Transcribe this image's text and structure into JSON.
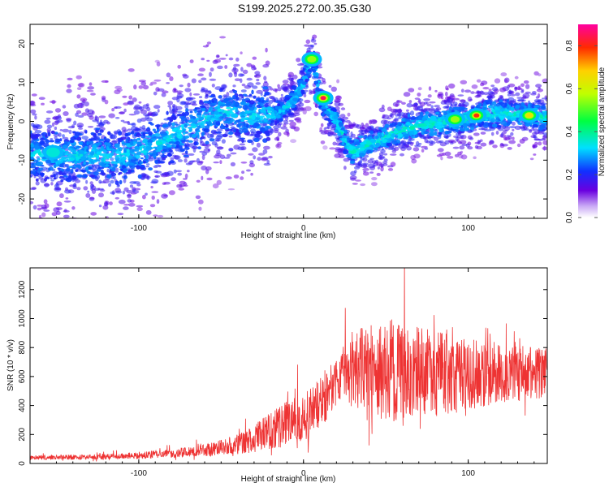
{
  "title": "S199.2025.272.00.35.G30",
  "chart_data": [
    {
      "type": "heatmap",
      "xlabel": "Height of straight line (km)",
      "ylabel": "Frequency (Hz)",
      "xlim": [
        -166,
        148
      ],
      "ylim": [
        -25,
        25
      ],
      "xticks": [
        -100,
        0,
        100
      ],
      "yticks": [
        -20,
        -10,
        0,
        10,
        20
      ],
      "colorbar": {
        "label": "Normalized spectral amplitude",
        "range": [
          0.0,
          0.9
        ],
        "ticks": [
          0.0,
          0.2,
          0.4,
          0.6,
          0.8
        ]
      },
      "ridge": {
        "x": [
          -166,
          -150,
          -130,
          -110,
          -90,
          -70,
          -50,
          -30,
          -15,
          -5,
          0,
          3,
          6,
          10,
          15,
          20,
          25,
          30,
          40,
          55,
          70,
          90,
          110,
          130,
          148
        ],
        "y": [
          -8,
          -9,
          -9,
          -9,
          -6,
          -2,
          3,
          1,
          2,
          6,
          10,
          14,
          16,
          6,
          3,
          0,
          -5,
          -8,
          -6,
          -3,
          -1,
          0,
          2,
          2,
          1
        ]
      },
      "hotspots": [
        {
          "x": 5,
          "y": 16,
          "amplitude": 0.55
        },
        {
          "x": 12,
          "y": 6,
          "amplitude": 0.85
        },
        {
          "x": 105,
          "y": 1.5,
          "amplitude": 0.8
        },
        {
          "x": 137,
          "y": 1.5,
          "amplitude": 0.65
        },
        {
          "x": 92,
          "y": 0.5,
          "amplitude": 0.55
        },
        {
          "x": -152,
          "y": -8,
          "amplitude": 0.35
        }
      ]
    },
    {
      "type": "line",
      "xlabel": "Height of straight line (km)",
      "ylabel": "SNR (10 * v/v)",
      "xlim": [
        -166,
        148
      ],
      "ylim": [
        0,
        1350
      ],
      "xticks": [
        -100,
        0,
        100
      ],
      "yticks": [
        0,
        200,
        400,
        600,
        800,
        1000,
        1200
      ],
      "color": "#ee3333",
      "envelope": {
        "x": [
          -166,
          -120,
          -100,
          -80,
          -60,
          -40,
          -20,
          0,
          10,
          20,
          25,
          35,
          50,
          60,
          80,
          100,
          120,
          148
        ],
        "mean": [
          40,
          45,
          55,
          70,
          90,
          130,
          220,
          330,
          420,
          560,
          610,
          640,
          650,
          630,
          620,
          610,
          620,
          620
        ],
        "spread": [
          15,
          20,
          25,
          30,
          40,
          70,
          130,
          180,
          200,
          150,
          180,
          300,
          360,
          350,
          300,
          250,
          200,
          180
        ]
      }
    }
  ]
}
